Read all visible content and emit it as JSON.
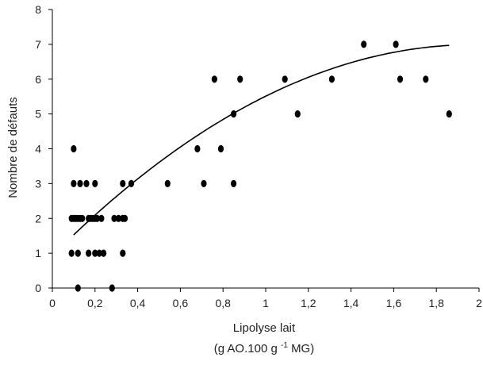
{
  "chart_data": {
    "type": "scatter",
    "xlabel": "Lipolyse lait",
    "xlabel_line2_prefix": "(g AO.100 g",
    "xlabel_line2_sup": "-1",
    "xlabel_line2_suffix": " MG)",
    "ylabel": "Nombre de défauts",
    "xlim": [
      0,
      2
    ],
    "ylim": [
      0,
      8
    ],
    "x_ticks": [
      0,
      0.2,
      0.4,
      0.6,
      0.8,
      1.0,
      1.2,
      1.4,
      1.6,
      1.8,
      2.0
    ],
    "x_tick_labels": [
      "0",
      "0,2",
      "0,4",
      "0,6",
      "0,8",
      "1",
      "1,2",
      "1,4",
      "1,6",
      "1,8",
      "2"
    ],
    "y_ticks": [
      0,
      1,
      2,
      3,
      4,
      5,
      6,
      7,
      8
    ],
    "y_tick_labels": [
      "0",
      "1",
      "2",
      "3",
      "4",
      "5",
      "6",
      "7",
      "8"
    ],
    "grid": false,
    "points": [
      {
        "x": 0.09,
        "y": 2
      },
      {
        "x": 0.1,
        "y": 2
      },
      {
        "x": 0.11,
        "y": 2
      },
      {
        "x": 0.12,
        "y": 2
      },
      {
        "x": 0.13,
        "y": 2
      },
      {
        "x": 0.14,
        "y": 2
      },
      {
        "x": 0.17,
        "y": 2
      },
      {
        "x": 0.18,
        "y": 2
      },
      {
        "x": 0.19,
        "y": 2
      },
      {
        "x": 0.2,
        "y": 2
      },
      {
        "x": 0.21,
        "y": 2
      },
      {
        "x": 0.23,
        "y": 2
      },
      {
        "x": 0.29,
        "y": 2
      },
      {
        "x": 0.31,
        "y": 2
      },
      {
        "x": 0.33,
        "y": 2
      },
      {
        "x": 0.34,
        "y": 2
      },
      {
        "x": 0.1,
        "y": 4
      },
      {
        "x": 0.1,
        "y": 3
      },
      {
        "x": 0.13,
        "y": 3
      },
      {
        "x": 0.16,
        "y": 3
      },
      {
        "x": 0.2,
        "y": 3
      },
      {
        "x": 0.33,
        "y": 3
      },
      {
        "x": 0.37,
        "y": 3
      },
      {
        "x": 0.09,
        "y": 1
      },
      {
        "x": 0.12,
        "y": 1
      },
      {
        "x": 0.17,
        "y": 1
      },
      {
        "x": 0.2,
        "y": 1
      },
      {
        "x": 0.22,
        "y": 1
      },
      {
        "x": 0.24,
        "y": 1
      },
      {
        "x": 0.33,
        "y": 1
      },
      {
        "x": 0.12,
        "y": 0
      },
      {
        "x": 0.28,
        "y": 0
      },
      {
        "x": 0.54,
        "y": 3
      },
      {
        "x": 0.71,
        "y": 3
      },
      {
        "x": 0.85,
        "y": 3
      },
      {
        "x": 0.68,
        "y": 4
      },
      {
        "x": 0.79,
        "y": 4
      },
      {
        "x": 0.85,
        "y": 5
      },
      {
        "x": 1.15,
        "y": 5
      },
      {
        "x": 1.86,
        "y": 5
      },
      {
        "x": 0.76,
        "y": 6
      },
      {
        "x": 0.88,
        "y": 6
      },
      {
        "x": 1.09,
        "y": 6
      },
      {
        "x": 1.31,
        "y": 6
      },
      {
        "x": 1.63,
        "y": 6
      },
      {
        "x": 1.75,
        "y": 6
      },
      {
        "x": 1.46,
        "y": 7
      },
      {
        "x": 1.61,
        "y": 7
      }
    ],
    "trendline": {
      "type": "polynomial-2",
      "x_range": [
        0.1,
        1.86
      ],
      "coefficients": {
        "a": -1.55,
        "b": 6.13,
        "c": 0.93
      }
    },
    "colors": {
      "points": "#000000",
      "line": "#000000",
      "axes": "#000000"
    }
  }
}
